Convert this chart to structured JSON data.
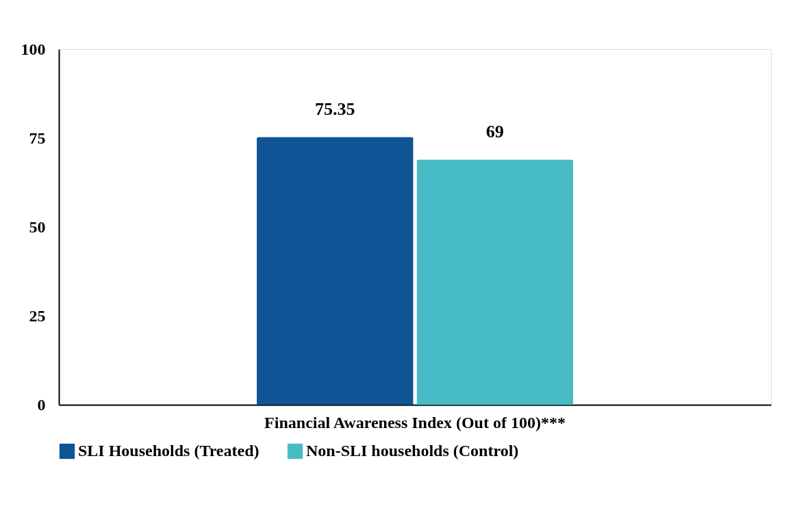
{
  "chart_data": {
    "type": "bar",
    "categories": [
      "Financial Awareness Index (Out of 100)***"
    ],
    "series": [
      {
        "name": "SLI Households (Treated)",
        "color": "#0f5494",
        "values": [
          75.35
        ]
      },
      {
        "name": "Non-SLI households (Control)",
        "color": "#48bcc6",
        "values": [
          69
        ]
      }
    ],
    "ylim": [
      0,
      100
    ],
    "yticks": [
      0,
      25,
      50,
      75,
      100
    ],
    "grid": false,
    "legend": "bottom",
    "data_labels": true
  }
}
